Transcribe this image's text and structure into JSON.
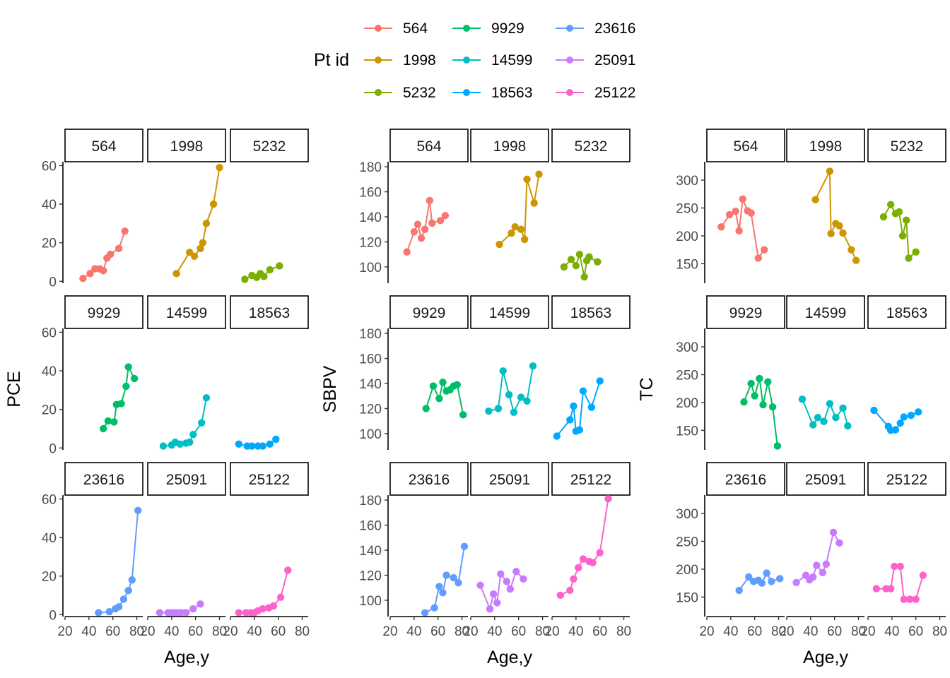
{
  "chart_data": [
    {
      "type": "line",
      "ylabel": "PCE",
      "xlabel": "Age,y",
      "xlim": [
        20,
        85
      ],
      "xticks": [
        20,
        40,
        60,
        80
      ],
      "ylim": [
        -1,
        62
      ],
      "yticks": [
        0,
        20,
        40,
        60
      ],
      "panels": [
        {
          "id": "564",
          "points": [
            [
              35,
              1.5
            ],
            [
              41,
              4
            ],
            [
              45,
              6.5
            ],
            [
              49,
              6.5
            ],
            [
              52,
              5.5
            ],
            [
              55,
              12
            ],
            [
              58,
              14
            ],
            [
              65,
              17
            ],
            [
              70,
              26
            ]
          ]
        },
        {
          "id": "1998",
          "points": [
            [
              44,
              4
            ],
            [
              55,
              15
            ],
            [
              59,
              13
            ],
            [
              64,
              17
            ],
            [
              66,
              20
            ],
            [
              69,
              30
            ],
            [
              75,
              40
            ],
            [
              80,
              59
            ]
          ]
        },
        {
          "id": "5232",
          "points": [
            [
              32,
              1
            ],
            [
              38,
              3
            ],
            [
              42,
              2
            ],
            [
              45,
              4
            ],
            [
              48,
              2.5
            ],
            [
              53,
              6
            ],
            [
              61,
              8
            ]
          ]
        },
        {
          "id": "9929",
          "points": [
            [
              52,
              10
            ],
            [
              56,
              14
            ],
            [
              61,
              13.5
            ],
            [
              63,
              22.5
            ],
            [
              67,
              23
            ],
            [
              71,
              32
            ],
            [
              73,
              42
            ],
            [
              78,
              36
            ]
          ]
        },
        {
          "id": "14599",
          "points": [
            [
              33,
              1
            ],
            [
              40,
              1.5
            ],
            [
              43,
              3
            ],
            [
              47,
              2
            ],
            [
              52,
              2.5
            ],
            [
              55,
              3
            ],
            [
              58,
              7
            ],
            [
              65,
              13
            ],
            [
              69,
              26
            ]
          ]
        },
        {
          "id": "18563",
          "points": [
            [
              27,
              2
            ],
            [
              34,
              1
            ],
            [
              38,
              1
            ],
            [
              43,
              1
            ],
            [
              47,
              1
            ],
            [
              53,
              2
            ],
            [
              58,
              4.5
            ]
          ]
        },
        {
          "id": "23616",
          "points": [
            [
              48,
              1
            ],
            [
              57,
              1.5
            ],
            [
              62,
              3
            ],
            [
              65,
              4
            ],
            [
              69,
              8
            ],
            [
              73,
              12.5
            ],
            [
              76,
              18
            ],
            [
              81,
              54
            ]
          ]
        },
        {
          "id": "25091",
          "points": [
            [
              30,
              1
            ],
            [
              37,
              1
            ],
            [
              39,
              1
            ],
            [
              42,
              1
            ],
            [
              45,
              1
            ],
            [
              48,
              1
            ],
            [
              52,
              1
            ],
            [
              58,
              3
            ],
            [
              64,
              5.5
            ]
          ]
        },
        {
          "id": "25122",
          "points": [
            [
              27,
              1
            ],
            [
              33,
              1
            ],
            [
              37,
              1
            ],
            [
              40,
              1
            ],
            [
              43,
              2
            ],
            [
              47,
              3
            ],
            [
              52,
              3.5
            ],
            [
              56,
              4.5
            ],
            [
              62,
              9
            ],
            [
              68,
              23
            ]
          ]
        }
      ]
    },
    {
      "type": "line",
      "ylabel": "SBPV",
      "xlabel": "Age,y",
      "xlim": [
        20,
        85
      ],
      "xticks": [
        20,
        40,
        60,
        80
      ],
      "ylim": [
        87,
        184
      ],
      "yticks": [
        100,
        120,
        140,
        160,
        180
      ],
      "panels": [
        {
          "id": "564",
          "points": [
            [
              34,
              112
            ],
            [
              40,
              128
            ],
            [
              43,
              134
            ],
            [
              46,
              123
            ],
            [
              49,
              130
            ],
            [
              53,
              153
            ],
            [
              55,
              135
            ],
            [
              62,
              137
            ],
            [
              66,
              141
            ]
          ]
        },
        {
          "id": "1998",
          "points": [
            [
              44,
              118
            ],
            [
              54,
              127
            ],
            [
              57,
              132
            ],
            [
              62,
              130
            ],
            [
              65,
              122
            ],
            [
              67,
              170
            ],
            [
              73,
              151
            ],
            [
              77,
              174
            ]
          ]
        },
        {
          "id": "5232",
          "points": [
            [
              30,
              100
            ],
            [
              36,
              106
            ],
            [
              40,
              101
            ],
            [
              43,
              110
            ],
            [
              47,
              92
            ],
            [
              49,
              105
            ],
            [
              51,
              108
            ],
            [
              58,
              104
            ]
          ]
        },
        {
          "id": "9929",
          "points": [
            [
              50,
              120
            ],
            [
              56,
              138
            ],
            [
              61,
              128
            ],
            [
              64,
              141
            ],
            [
              67,
              134
            ],
            [
              70,
              135
            ],
            [
              73,
              138
            ],
            [
              76,
              139
            ],
            [
              81,
              115
            ]
          ]
        },
        {
          "id": "14599",
          "points": [
            [
              35,
              118
            ],
            [
              43,
              120
            ],
            [
              47,
              150
            ],
            [
              52,
              131
            ],
            [
              56,
              117
            ],
            [
              62,
              129
            ],
            [
              67,
              126
            ],
            [
              72,
              154
            ]
          ]
        },
        {
          "id": "18563",
          "points": [
            [
              24,
              98
            ],
            [
              35,
              111
            ],
            [
              38,
              122
            ],
            [
              40,
              102
            ],
            [
              43,
              103
            ],
            [
              46,
              134
            ],
            [
              53,
              121
            ],
            [
              60,
              142
            ]
          ]
        },
        {
          "id": "23616",
          "points": [
            [
              49,
              90
            ],
            [
              57,
              94
            ],
            [
              61,
              111
            ],
            [
              64,
              106
            ],
            [
              67,
              120
            ],
            [
              73,
              118
            ],
            [
              77,
              114
            ],
            [
              82,
              143
            ]
          ]
        },
        {
          "id": "25091",
          "points": [
            [
              28,
              112
            ],
            [
              36,
              93
            ],
            [
              39,
              105
            ],
            [
              42,
              98
            ],
            [
              45,
              121
            ],
            [
              50,
              115
            ],
            [
              53,
              109
            ],
            [
              58,
              123
            ],
            [
              64,
              117
            ]
          ]
        },
        {
          "id": "25122",
          "points": [
            [
              27,
              104
            ],
            [
              35,
              108
            ],
            [
              38,
              117
            ],
            [
              42,
              126
            ],
            [
              46,
              133
            ],
            [
              51,
              131
            ],
            [
              54,
              130
            ],
            [
              60,
              138
            ],
            [
              67,
              181
            ]
          ]
        }
      ]
    },
    {
      "type": "line",
      "ylabel": "TC",
      "xlabel": "Age,y",
      "xlim": [
        20,
        85
      ],
      "xticks": [
        20,
        40,
        60,
        80
      ],
      "ylim": [
        115,
        333
      ],
      "yticks": [
        150,
        200,
        250,
        300
      ],
      "panels": [
        {
          "id": "564",
          "points": [
            [
              32,
              216
            ],
            [
              39,
              238
            ],
            [
              44,
              244
            ],
            [
              47,
              209
            ],
            [
              50,
              266
            ],
            [
              54,
              245
            ],
            [
              57,
              241
            ],
            [
              63,
              160
            ],
            [
              68,
              175
            ]
          ]
        },
        {
          "id": "1998",
          "points": [
            [
              44,
              265
            ],
            [
              56,
              316
            ],
            [
              57,
              204
            ],
            [
              61,
              222
            ],
            [
              64,
              218
            ],
            [
              67,
              205
            ],
            [
              74,
              175
            ],
            [
              78,
              156
            ]
          ]
        },
        {
          "id": "5232",
          "points": [
            [
              33,
              234
            ],
            [
              39,
              256
            ],
            [
              43,
              240
            ],
            [
              46,
              243
            ],
            [
              49,
              200
            ],
            [
              52,
              228
            ],
            [
              54,
              160
            ],
            [
              60,
              171
            ]
          ]
        },
        {
          "id": "9929",
          "points": [
            [
              51,
              201
            ],
            [
              57,
              234
            ],
            [
              60,
              212
            ],
            [
              64,
              243
            ],
            [
              67,
              196
            ],
            [
              71,
              237
            ],
            [
              75,
              192
            ],
            [
              79,
              122
            ]
          ]
        },
        {
          "id": "14599",
          "points": [
            [
              33,
              206
            ],
            [
              42,
              160
            ],
            [
              46,
              173
            ],
            [
              51,
              166
            ],
            [
              56,
              198
            ],
            [
              61,
              173
            ],
            [
              67,
              190
            ],
            [
              71,
              158
            ]
          ]
        },
        {
          "id": "18563",
          "points": [
            [
              25,
              186
            ],
            [
              37,
              157
            ],
            [
              39,
              150
            ],
            [
              43,
              151
            ],
            [
              47,
              163
            ],
            [
              50,
              174
            ],
            [
              56,
              177
            ],
            [
              62,
              183
            ]
          ]
        },
        {
          "id": "23616",
          "points": [
            [
              47,
              162
            ],
            [
              55,
              186
            ],
            [
              59,
              178
            ],
            [
              63,
              180
            ],
            [
              66,
              175
            ],
            [
              70,
              193
            ],
            [
              74,
              178
            ],
            [
              81,
              183
            ]
          ]
        },
        {
          "id": "25091",
          "points": [
            [
              28,
              176
            ],
            [
              36,
              189
            ],
            [
              39,
              181
            ],
            [
              42,
              186
            ],
            [
              45,
              207
            ],
            [
              50,
              194
            ],
            [
              53,
              209
            ],
            [
              59,
              266
            ],
            [
              64,
              247
            ]
          ]
        },
        {
          "id": "25122",
          "points": [
            [
              27,
              165
            ],
            [
              35,
              165
            ],
            [
              39,
              165
            ],
            [
              42,
              205
            ],
            [
              47,
              205
            ],
            [
              50,
              146
            ],
            [
              55,
              146
            ],
            [
              60,
              146
            ],
            [
              66,
              189
            ]
          ]
        }
      ]
    }
  ],
  "legend": {
    "title": "Pt id",
    "items": [
      {
        "label": "564",
        "color": "#F8766D"
      },
      {
        "label": "1998",
        "color": "#CD9600"
      },
      {
        "label": "5232",
        "color": "#7CAE00"
      },
      {
        "label": "9929",
        "color": "#00BE67"
      },
      {
        "label": "14599",
        "color": "#00BFC4"
      },
      {
        "label": "18563",
        "color": "#00A9FF"
      },
      {
        "label": "23616",
        "color": "#619CFF"
      },
      {
        "label": "25091",
        "color": "#C77CFF"
      },
      {
        "label": "25122",
        "color": "#FF61CC"
      }
    ]
  }
}
